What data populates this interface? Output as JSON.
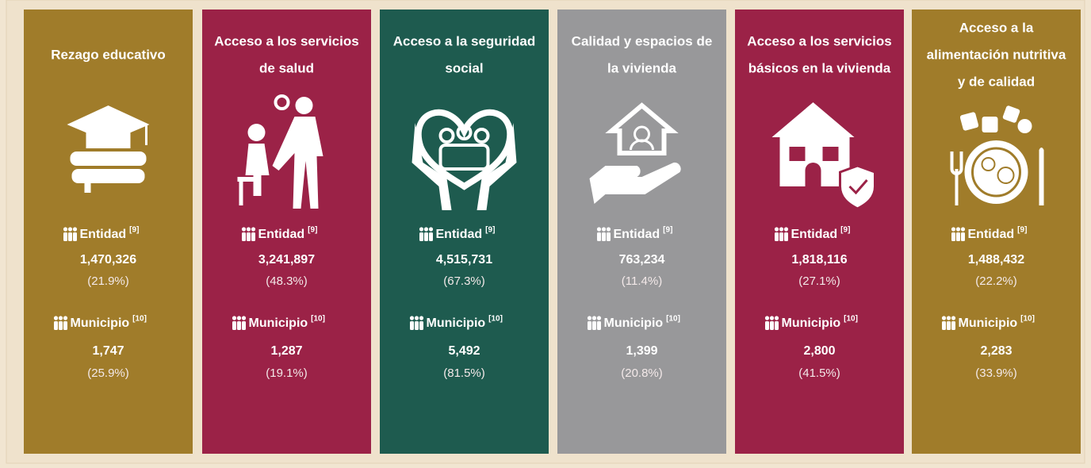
{
  "labels": {
    "entidad": "Entidad",
    "entidad_ref": "[9]",
    "municipio": "Municipio",
    "municipio_ref": "[10]"
  },
  "cards": [
    {
      "title": [
        "Rezago educativo"
      ],
      "entidad_value": "1,470,326",
      "entidad_pct": "(21.9%)",
      "municipio_value": "1,747",
      "municipio_pct": "(25.9%)"
    },
    {
      "title": [
        "Acceso a los servicios",
        "de salud"
      ],
      "entidad_value": "3,241,897",
      "entidad_pct": "(48.3%)",
      "municipio_value": "1,287",
      "municipio_pct": "(19.1%)"
    },
    {
      "title": [
        "Acceso a la seguridad",
        "social"
      ],
      "entidad_value": "4,515,731",
      "entidad_pct": "(67.3%)",
      "municipio_value": "5,492",
      "municipio_pct": "(81.5%)"
    },
    {
      "title": [
        "Calidad y espacios de",
        "la vivienda"
      ],
      "entidad_value": "763,234",
      "entidad_pct": "(11.4%)",
      "municipio_value": "1,399",
      "municipio_pct": "(20.8%)"
    },
    {
      "title": [
        "Acceso a los servicios",
        "básicos en la vivienda"
      ],
      "entidad_value": "1,818,116",
      "entidad_pct": "(27.1%)",
      "municipio_value": "2,800",
      "municipio_pct": "(41.5%)"
    },
    {
      "title": [
        "Acceso a la",
        "alimentación nutritiva",
        "y de calidad"
      ],
      "entidad_value": "1,488,432",
      "entidad_pct": "(22.2%)",
      "municipio_value": "2,283",
      "municipio_pct": "(33.9%)"
    }
  ]
}
